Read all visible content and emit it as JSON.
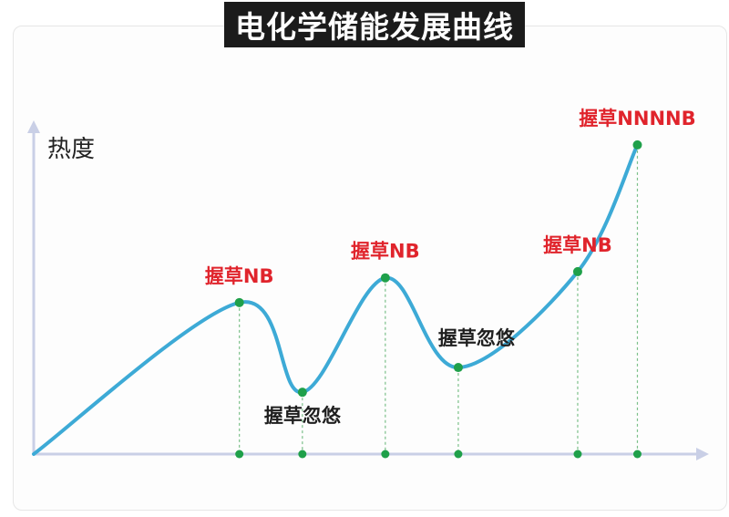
{
  "chart_data": {
    "type": "line",
    "title": "电化学储能发展曲线",
    "ylabel": "热度",
    "xlabel": "",
    "grid": false,
    "legend": "none",
    "colors": {
      "line": "#3daad6",
      "marker": "#1fa04a",
      "axis": "#c9cfe6",
      "guide": "#7cc08a",
      "annotation_hot": "#e0242c",
      "annotation_calm": "#1f1f1f"
    },
    "points": [
      {
        "x": 0.0,
        "y": 0.0,
        "label": ""
      },
      {
        "x": 3.1,
        "y": 0.49,
        "label": "握草NB"
      },
      {
        "x": 4.05,
        "y": 0.2,
        "label": "握草忽悠"
      },
      {
        "x": 5.3,
        "y": 0.57,
        "label": "握草NB"
      },
      {
        "x": 6.4,
        "y": 0.28,
        "label": "握草忽悠"
      },
      {
        "x": 8.2,
        "y": 0.59,
        "label": "握草NB"
      },
      {
        "x": 9.1,
        "y": 1.0,
        "label": "握草NNNNB"
      }
    ],
    "xlim": [
      0,
      10
    ],
    "ylim": [
      0,
      1.1
    ]
  }
}
